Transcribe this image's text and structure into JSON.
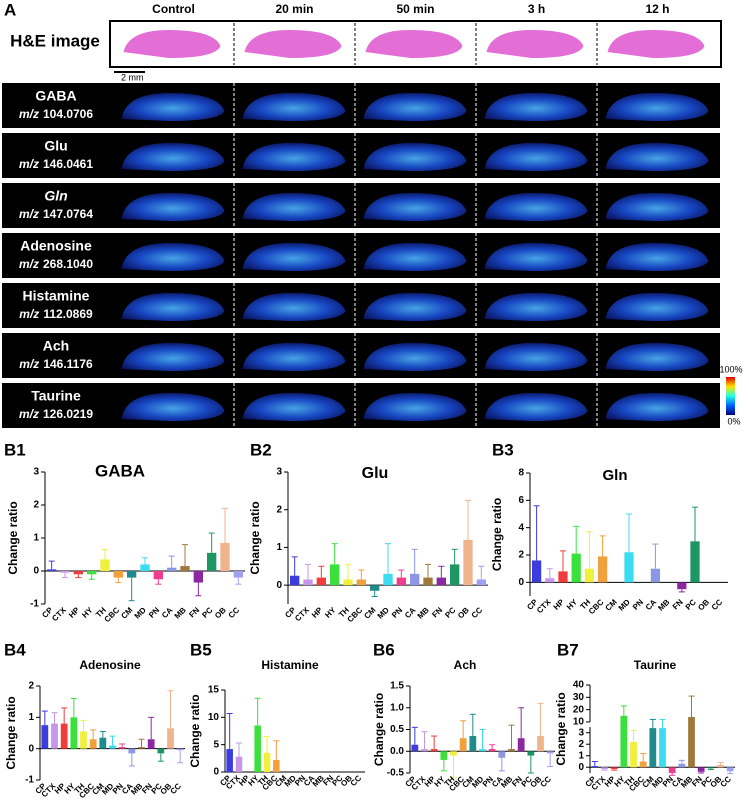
{
  "panel_a": {
    "label": "A",
    "he_label": "H&E image",
    "scale_bar": "2 mm",
    "mz_prefix": "m/z",
    "columns": [
      "Control",
      "20 min",
      "50 min",
      "3 h",
      "12 h"
    ],
    "rows": [
      {
        "name": "GABA",
        "mz": "104.0706"
      },
      {
        "name": "Glu",
        "mz": "146.0461"
      },
      {
        "name": "Gln",
        "mz": "147.0764"
      },
      {
        "name": "Adenosine",
        "mz": "268.1040"
      },
      {
        "name": "Histamine",
        "mz": "112.0869"
      },
      {
        "name": "Ach",
        "mz": "146.1176"
      },
      {
        "name": "Taurine",
        "mz": "126.0219"
      }
    ],
    "colorbar_max": "100%",
    "colorbar_min": "0%"
  },
  "chart_data": [
    {
      "type": "bar",
      "label": "B1",
      "title": "GABA",
      "y_label": "Change ratio",
      "categories": [
        "CP",
        "CTX",
        "HP",
        "HY",
        "TH",
        "CBC",
        "CM",
        "MD",
        "PN",
        "CA",
        "MB",
        "FN",
        "PC",
        "OB",
        "CC"
      ],
      "colors": [
        "#3c3ce0",
        "#c896e8",
        "#f03c3c",
        "#3ce03c",
        "#f0f03c",
        "#f0a03c",
        "#1e8c8c",
        "#3cdcf0",
        "#f03c8c",
        "#8c96e6",
        "#a0783c",
        "#8c28a0",
        "#1e9664",
        "#f0b48c",
        "#a0a0f0"
      ],
      "values": [
        0.05,
        -0.05,
        -0.1,
        -0.1,
        0.35,
        -0.2,
        -0.2,
        0.2,
        -0.25,
        0.1,
        0.15,
        -0.35,
        0.55,
        0.85,
        -0.2
      ],
      "errors": [
        0.25,
        0.15,
        0.1,
        0.15,
        0.3,
        0.15,
        0.7,
        0.2,
        0.15,
        0.35,
        0.65,
        0.4,
        0.6,
        1.05,
        0.2
      ],
      "ylim": [
        -1,
        3
      ],
      "yticks": [
        -1,
        0,
        1,
        2,
        3
      ]
    },
    {
      "type": "bar",
      "label": "B2",
      "title": "Glu",
      "y_label": "Change ratio",
      "categories": [
        "CP",
        "CTX",
        "HP",
        "HY",
        "TH",
        "CBC",
        "CM",
        "MD",
        "PN",
        "CA",
        "MB",
        "FN",
        "PC",
        "OB",
        "CC"
      ],
      "colors": [
        "#3c3ce0",
        "#c896e8",
        "#f03c3c",
        "#3ce03c",
        "#f0f03c",
        "#f0a03c",
        "#1e8c8c",
        "#3cdcf0",
        "#f03c8c",
        "#8c96e6",
        "#a0783c",
        "#8c28a0",
        "#1e9664",
        "#f0b48c",
        "#a0a0f0"
      ],
      "values": [
        0.25,
        0.15,
        0.2,
        0.55,
        0.15,
        0.15,
        -0.15,
        0.3,
        0.2,
        0.3,
        0.2,
        0.2,
        0.55,
        1.2,
        0.15
      ],
      "errors": [
        0.5,
        0.4,
        0.3,
        0.55,
        0.4,
        0.25,
        0.15,
        0.8,
        0.2,
        0.65,
        0.35,
        0.3,
        0.4,
        1.05,
        0.35
      ],
      "ylim": [
        -0.5,
        3
      ],
      "yticks": [
        0,
        1,
        2,
        3
      ]
    },
    {
      "type": "bar",
      "label": "B3",
      "title": "Gln",
      "y_label": "Change ratio",
      "categories": [
        "CP",
        "CTX",
        "HP",
        "HY",
        "TH",
        "CBC",
        "CM",
        "MD",
        "PN",
        "CA",
        "MB",
        "FN",
        "PC",
        "OB",
        "CC"
      ],
      "colors": [
        "#3c3ce0",
        "#c896e8",
        "#f03c3c",
        "#3ce03c",
        "#f0f03c",
        "#f0a03c",
        "#1e8c8c",
        "#3cdcf0",
        "#f03c8c",
        "#8c96e6",
        "#a0783c",
        "#8c28a0",
        "#1e9664",
        "#f0b48c",
        "#a0a0f0"
      ],
      "values": [
        1.6,
        0.3,
        0.8,
        2.1,
        1.0,
        1.9,
        0,
        2.2,
        0,
        1.0,
        0,
        -0.5,
        3.0,
        0,
        0
      ],
      "errors": [
        4.0,
        0.7,
        1.5,
        2.0,
        2.7,
        1.5,
        0,
        2.8,
        0,
        1.8,
        0,
        0.2,
        2.5,
        0,
        0
      ],
      "ylim": [
        -1,
        8
      ],
      "yticks": [
        0,
        2,
        4,
        6,
        8
      ]
    },
    {
      "type": "bar",
      "label": "B4",
      "title": "Adenosine",
      "y_label": "Change ratio",
      "categories": [
        "CP",
        "CTX",
        "HP",
        "HY",
        "TH",
        "CBC",
        "CM",
        "MD",
        "PN",
        "CA",
        "MB",
        "FN",
        "PC",
        "OB",
        "CC"
      ],
      "colors": [
        "#3c3ce0",
        "#c896e8",
        "#f03c3c",
        "#3ce03c",
        "#f0f03c",
        "#f0a03c",
        "#1e8c8c",
        "#3cdcf0",
        "#f03c8c",
        "#8c96e6",
        "#a0783c",
        "#8c28a0",
        "#1e9664",
        "#f0b48c",
        "#a0a0f0"
      ],
      "values": [
        0.75,
        0.8,
        0.8,
        1.0,
        0.55,
        0.3,
        0.35,
        0.1,
        0.05,
        -0.15,
        0.05,
        0.3,
        -0.15,
        0.65,
        -0.05
      ],
      "errors": [
        0.45,
        0.35,
        0.5,
        0.6,
        0.35,
        0.3,
        0.2,
        0.3,
        0.1,
        0.4,
        0.25,
        0.7,
        0.25,
        1.2,
        0.4
      ],
      "ylim": [
        -1,
        2
      ],
      "yticks": [
        -1,
        0,
        1,
        2
      ]
    },
    {
      "type": "bar",
      "label": "B5",
      "title": "Histamine",
      "y_label": "Change ratio",
      "categories": [
        "CP",
        "CTX",
        "HP",
        "HY",
        "TH",
        "CBC",
        "CM",
        "MD",
        "PN",
        "CA",
        "MB",
        "FN",
        "PC",
        "OB",
        "CC"
      ],
      "colors": [
        "#3c3ce0",
        "#c896e8",
        "#f03c3c",
        "#3ce03c",
        "#f0f03c",
        "#f0a03c",
        "#1e8c8c",
        "#3cdcf0",
        "#f03c8c",
        "#8c96e6",
        "#a0783c",
        "#8c28a0",
        "#1e9664",
        "#f0b48c",
        "#a0a0f0"
      ],
      "values": [
        4.2,
        2.8,
        0,
        8.5,
        3.5,
        2.2,
        0,
        0,
        0,
        0,
        0,
        0,
        0,
        0,
        0
      ],
      "errors": [
        6.5,
        2.5,
        0,
        5.0,
        3.0,
        3.5,
        0,
        0,
        0,
        0,
        0,
        0,
        0,
        0,
        0
      ],
      "ylim": [
        0,
        15
      ],
      "yticks": [
        0,
        5,
        10,
        15
      ]
    },
    {
      "type": "bar",
      "label": "B6",
      "title": "Ach",
      "y_label": "Change ratio",
      "categories": [
        "CP",
        "CTX",
        "HP",
        "HY",
        "TH",
        "CBC",
        "CM",
        "MD",
        "PN",
        "CA",
        "MB",
        "FN",
        "PC",
        "OB",
        "CC"
      ],
      "colors": [
        "#3c3ce0",
        "#c896e8",
        "#f03c3c",
        "#3ce03c",
        "#f0f03c",
        "#f0a03c",
        "#1e8c8c",
        "#3cdcf0",
        "#f03c8c",
        "#8c96e6",
        "#a0783c",
        "#8c28a0",
        "#1e9664",
        "#f0b48c",
        "#a0a0f0"
      ],
      "values": [
        0.15,
        0.05,
        0.05,
        -0.2,
        -0.1,
        0.3,
        0.35,
        0.05,
        0.05,
        -0.15,
        0.05,
        0.3,
        -0.1,
        0.35,
        -0.05
      ],
      "errors": [
        0.4,
        0.4,
        0.3,
        0.25,
        0.5,
        0.4,
        0.5,
        0.45,
        0.1,
        0.3,
        0.55,
        0.7,
        0.4,
        0.75,
        0.3
      ],
      "ylim": [
        -0.5,
        1.5
      ],
      "yticks": [
        -0.5,
        {
          "value": 0,
          "label": "0.0"
        },
        0.5,
        {
          "value": 1,
          "label": "1.0"
        },
        1.5
      ]
    },
    {
      "type": "bar",
      "label": "B7",
      "title": "Taurine",
      "y_label": "Change ratio",
      "categories": [
        "CP",
        "CTX",
        "HP",
        "HY",
        "TH",
        "CBC",
        "CM",
        "MD",
        "PN",
        "CA",
        "MB",
        "FN",
        "PC",
        "OB",
        "CC"
      ],
      "colors": [
        "#3c3ce0",
        "#c896e8",
        "#f03c3c",
        "#3ce03c",
        "#f0f03c",
        "#f0a03c",
        "#1e8c8c",
        "#3cdcf0",
        "#f03c8c",
        "#8c96e6",
        "#a0783c",
        "#8c28a0",
        "#1e9664",
        "#f0b48c",
        "#a0a0f0"
      ],
      "values": [
        0.1,
        -0.15,
        -0.15,
        15,
        2.2,
        0.5,
        3.4,
        3.4,
        -0.5,
        0.3,
        14,
        -0.4,
        -0.1,
        0.2,
        -0.35
      ],
      "errors": [
        0.4,
        0.1,
        0.1,
        8,
        1.0,
        0.7,
        0.3,
        0.2,
        0.2,
        0.3,
        17,
        0.1,
        0.1,
        0.2,
        0.2
      ],
      "ylim": [
        -0.5,
        40
      ],
      "ybreak": [
        3.5,
        10
      ],
      "yticks": [
        0,
        1,
        2,
        3,
        10,
        20,
        30,
        40
      ]
    }
  ]
}
